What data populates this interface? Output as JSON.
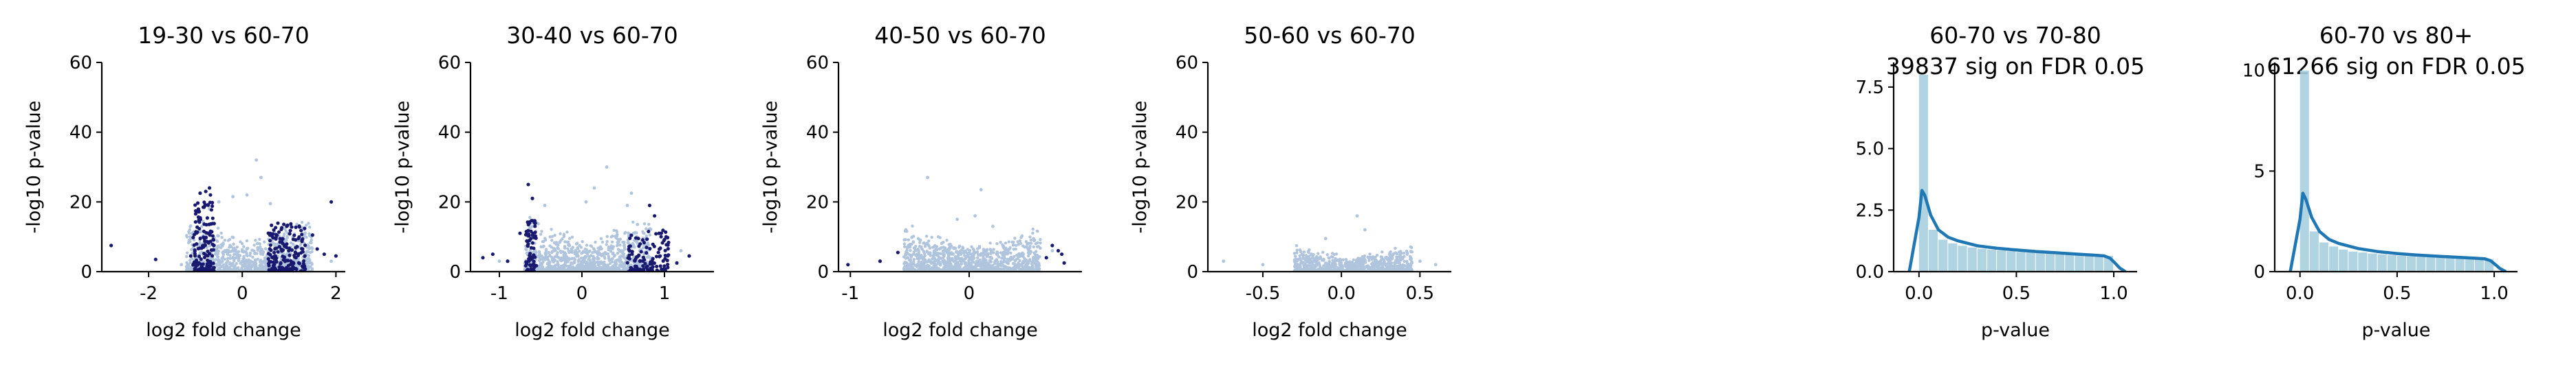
{
  "colors": {
    "bg_points": "#b0c4de",
    "sig_points": "#191970",
    "hist_fill": "#a8cfe0",
    "kde_line": "#1f77b4",
    "axis": "#000000"
  },
  "chart_data": [
    {
      "type": "scatter",
      "title": "19-30 vs 60-70",
      "xlabel": "log2 fold change",
      "ylabel": "-log10 p-value",
      "xlim": [
        -3.0,
        2.2
      ],
      "ylim": [
        0,
        60
      ],
      "xticks": [
        "-2",
        "0",
        "2"
      ],
      "yticks": [
        "0",
        "20",
        "40",
        "60"
      ],
      "series": [
        {
          "role": "all",
          "cloud": {
            "xmin": -1.2,
            "xmax": 1.5,
            "ymax": 17,
            "tail": 2.4,
            "count": 1100
          },
          "points": [
            [
              -0.7,
              18.0
            ],
            [
              -0.5,
              20.0
            ],
            [
              -0.2,
              21.5
            ],
            [
              0.3,
              32.0
            ],
            [
              0.4,
              27.0
            ],
            [
              0.1,
              22.0
            ],
            [
              0.6,
              19.5
            ],
            [
              1.9,
              3.0
            ],
            [
              -1.3,
              2.0
            ]
          ]
        },
        {
          "role": "significant",
          "clusters": [
            {
              "xmin": -1.05,
              "xmax": -0.6,
              "ymax": 20,
              "count": 150
            },
            {
              "xmin": 0.55,
              "xmax": 1.35,
              "ymax": 14,
              "count": 170
            }
          ],
          "points": [
            [
              -2.8,
              7.5
            ],
            [
              -1.85,
              3.5
            ],
            [
              -0.9,
              22.5
            ],
            [
              -0.78,
              23.0
            ],
            [
              -0.7,
              24.0
            ],
            [
              -0.68,
              22.0
            ],
            [
              0.95,
              13.0
            ],
            [
              1.2,
              9.5
            ],
            [
              1.5,
              10.5
            ],
            [
              1.9,
              20.0
            ],
            [
              1.6,
              6.5
            ],
            [
              2.0,
              4.5
            ],
            [
              1.75,
              5.0
            ],
            [
              -1.1,
              4.5
            ]
          ]
        }
      ]
    },
    {
      "type": "scatter",
      "title": "30-40 vs 60-70",
      "xlabel": "log2 fold change",
      "ylabel": "-log10 p-value",
      "xlim": [
        -1.35,
        1.6
      ],
      "ylim": [
        0,
        60
      ],
      "xticks": [
        "-1",
        "0",
        "1"
      ],
      "yticks": [
        "0",
        "20",
        "40",
        "60"
      ],
      "series": [
        {
          "role": "all",
          "cloud": {
            "xmin": -0.7,
            "xmax": 0.85,
            "ymax": 17,
            "tail": 2.4,
            "count": 1200
          },
          "points": [
            [
              0.3,
              30.0
            ],
            [
              0.05,
              20.0
            ],
            [
              0.55,
              19.0
            ],
            [
              0.6,
              22.5
            ],
            [
              -0.45,
              19.0
            ],
            [
              0.15,
              24.0
            ],
            [
              1.2,
              6.0
            ],
            [
              -1.0,
              3.0
            ]
          ]
        },
        {
          "role": "significant",
          "clusters": [
            {
              "xmin": -0.68,
              "xmax": -0.55,
              "ymax": 15,
              "count": 70
            },
            {
              "xmin": 0.55,
              "xmax": 1.05,
              "ymax": 12,
              "count": 120
            }
          ],
          "points": [
            [
              -1.2,
              4.0
            ],
            [
              -1.08,
              5.0
            ],
            [
              -0.9,
              3.0
            ],
            [
              -0.65,
              25.0
            ],
            [
              -0.6,
              21.0
            ],
            [
              0.82,
              19.0
            ],
            [
              0.88,
              16.0
            ],
            [
              1.02,
              10.0
            ],
            [
              1.3,
              4.5
            ],
            [
              1.15,
              2.5
            ],
            [
              -0.75,
              11.0
            ]
          ]
        }
      ]
    },
    {
      "type": "scatter",
      "title": "40-50 vs 60-70",
      "xlabel": "log2 fold change",
      "ylabel": "-log10 p-value",
      "xlim": [
        -1.1,
        0.95
      ],
      "ylim": [
        0,
        60
      ],
      "xticks": [
        "-1",
        "0"
      ],
      "yticks": [
        "0",
        "20",
        "40",
        "60"
      ],
      "series": [
        {
          "role": "all",
          "cloud": {
            "xmin": -0.55,
            "xmax": 0.6,
            "ymax": 14,
            "tail": 2.2,
            "count": 1200
          },
          "points": [
            [
              -0.35,
              27.0
            ],
            [
              0.1,
              23.5
            ],
            [
              0.05,
              16.0
            ],
            [
              0.2,
              13.0
            ],
            [
              -0.1,
              15.0
            ],
            [
              0.55,
              9.0
            ],
            [
              0.7,
              6.0
            ]
          ]
        },
        {
          "role": "significant",
          "clusters": [],
          "points": [
            [
              -1.02,
              2.0
            ],
            [
              -0.75,
              3.0
            ],
            [
              -0.6,
              5.5
            ],
            [
              0.65,
              4.0
            ],
            [
              0.7,
              7.5
            ],
            [
              0.75,
              6.0
            ],
            [
              0.78,
              5.0
            ],
            [
              0.8,
              2.5
            ]
          ]
        }
      ]
    },
    {
      "type": "scatter",
      "title": "50-60 vs 60-70",
      "xlabel": "log2 fold change",
      "ylabel": "-log10 p-value",
      "xlim": [
        -0.85,
        0.7
      ],
      "ylim": [
        0,
        60
      ],
      "xticks": [
        "-0.5",
        "0.0",
        "0.5"
      ],
      "yticks": [
        "0",
        "20",
        "40",
        "60"
      ],
      "series": [
        {
          "role": "all",
          "cloud": {
            "xmin": -0.3,
            "xmax": 0.45,
            "ymax": 8,
            "tail": 2.0,
            "count": 900
          },
          "points": [
            [
              0.1,
              16.0
            ],
            [
              0.15,
              12.0
            ],
            [
              -0.75,
              3.0
            ],
            [
              -0.5,
              2.0
            ],
            [
              0.6,
              2.0
            ],
            [
              0.5,
              3.0
            ],
            [
              -0.1,
              9.5
            ]
          ]
        },
        {
          "role": "significant",
          "clusters": [],
          "points": []
        }
      ]
    },
    {
      "type": "area",
      "title": "60-70 vs 70-80",
      "subtitle": "39837 sig on FDR 0.05",
      "xlabel": "p-value",
      "ylabel": "",
      "xlim": [
        -0.13,
        1.12
      ],
      "ylim": [
        0,
        8.5
      ],
      "xticks": [
        "0.0",
        "0.5",
        "1.0"
      ],
      "xtick_values": [
        0,
        0.5,
        1.0
      ],
      "yticks": [
        "0.0",
        "2.5",
        "5.0",
        "7.5"
      ],
      "ytick_values": [
        0,
        2.5,
        5.0,
        7.5
      ],
      "histogram": {
        "x": [
          0.0,
          0.05,
          0.1,
          0.15,
          0.2,
          0.25,
          0.3,
          0.35,
          0.4,
          0.45,
          0.5,
          0.55,
          0.6,
          0.65,
          0.7,
          0.75,
          0.8,
          0.85,
          0.9,
          0.95
        ],
        "width": 0.05,
        "values": [
          8.0,
          1.7,
          1.3,
          1.15,
          1.05,
          0.98,
          0.93,
          0.89,
          0.86,
          0.83,
          0.8,
          0.78,
          0.76,
          0.74,
          0.72,
          0.7,
          0.69,
          0.67,
          0.66,
          0.64
        ]
      },
      "kde": {
        "x": [
          -0.05,
          0.0,
          0.015,
          0.03,
          0.06,
          0.1,
          0.15,
          0.2,
          0.3,
          0.4,
          0.5,
          0.6,
          0.7,
          0.8,
          0.9,
          0.95,
          0.98,
          1.0,
          1.03,
          1.06
        ],
        "y": [
          0.0,
          2.2,
          3.3,
          3.1,
          2.3,
          1.7,
          1.4,
          1.25,
          1.05,
          0.95,
          0.88,
          0.82,
          0.77,
          0.72,
          0.67,
          0.64,
          0.55,
          0.4,
          0.15,
          0.0
        ]
      }
    },
    {
      "type": "area",
      "title": "60-70 vs 80+",
      "subtitle": "61266 sig on FDR 0.05",
      "xlabel": "p-value",
      "ylabel": "",
      "xlim": [
        -0.13,
        1.12
      ],
      "ylim": [
        0,
        10.4
      ],
      "xticks": [
        "0.0",
        "0.5",
        "1.0"
      ],
      "xtick_values": [
        0,
        0.5,
        1.0
      ],
      "yticks": [
        "0",
        "5",
        "10"
      ],
      "ytick_values": [
        0,
        5,
        10
      ],
      "histogram": {
        "x": [
          0.0,
          0.05,
          0.1,
          0.15,
          0.2,
          0.25,
          0.3,
          0.35,
          0.4,
          0.45,
          0.5,
          0.55,
          0.6,
          0.65,
          0.7,
          0.75,
          0.8,
          0.85,
          0.9,
          0.95
        ],
        "width": 0.05,
        "values": [
          10.0,
          2.0,
          1.45,
          1.25,
          1.1,
          1.0,
          0.95,
          0.9,
          0.86,
          0.82,
          0.79,
          0.77,
          0.74,
          0.72,
          0.7,
          0.68,
          0.66,
          0.65,
          0.63,
          0.62
        ]
      },
      "kde": {
        "x": [
          -0.05,
          0.0,
          0.015,
          0.03,
          0.06,
          0.1,
          0.15,
          0.2,
          0.3,
          0.4,
          0.5,
          0.6,
          0.7,
          0.8,
          0.9,
          0.95,
          0.98,
          1.0,
          1.03,
          1.06
        ],
        "y": [
          0.0,
          2.6,
          3.9,
          3.6,
          2.7,
          2.0,
          1.6,
          1.4,
          1.15,
          1.0,
          0.9,
          0.83,
          0.77,
          0.72,
          0.67,
          0.64,
          0.55,
          0.4,
          0.15,
          0.0
        ]
      }
    }
  ]
}
